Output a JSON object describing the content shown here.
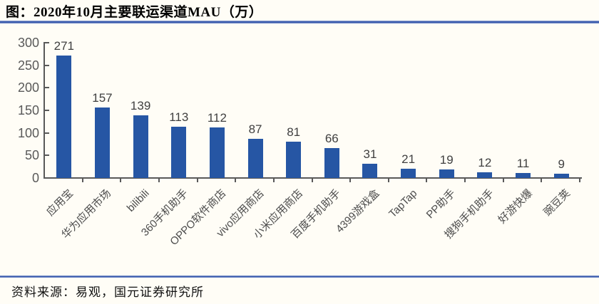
{
  "header": {
    "title": "图：2020年10月主要联运渠道MAU（万）"
  },
  "footer": {
    "source": "资料来源：易观，国元证券研究所"
  },
  "chart_data": {
    "type": "bar",
    "title": "2020年10月主要联运渠道MAU（万）",
    "categories": [
      "应用宝",
      "华为应用市场",
      "bilibili",
      "360手机助手",
      "OPPO软件商店",
      "vivo应用商店",
      "小米应用商店",
      "百度手机助手",
      "4399游戏盒",
      "TapTap",
      "PP助手",
      "搜狗手机助手",
      "好游快爆",
      "豌豆荚"
    ],
    "values": [
      271,
      157,
      139,
      113,
      112,
      87,
      81,
      66,
      31,
      21,
      19,
      12,
      11,
      9
    ],
    "xlabel": "",
    "ylabel": "",
    "ylim": [
      0,
      300
    ],
    "yticks": [
      0,
      50,
      100,
      150,
      200,
      250,
      300
    ],
    "grid": false,
    "legend": null,
    "value_labels_shown": true,
    "bar_color": "#2656A4",
    "axis_color": "#595959",
    "value_label_color": "#404040",
    "tick_label_color": "#595959",
    "category_label_color": "#4d4d4d",
    "divider_color": "#3f5fae"
  }
}
